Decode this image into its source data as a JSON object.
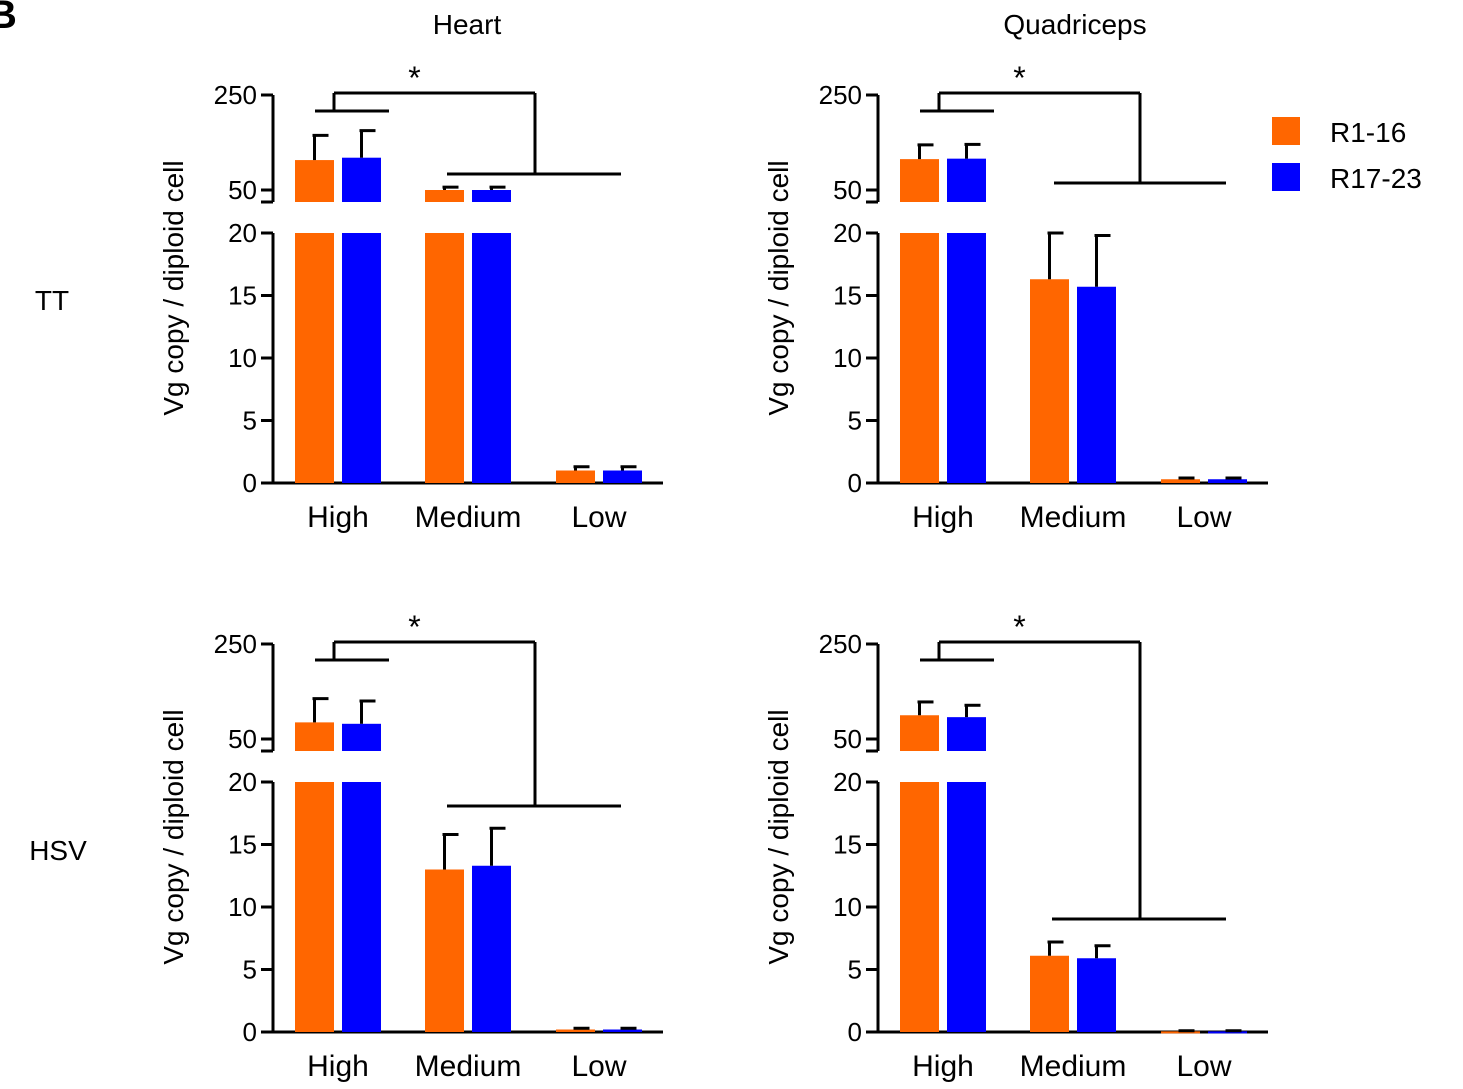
{
  "panel_letter": "B",
  "column_titles": [
    "Heart",
    "Quadriceps"
  ],
  "row_labels": [
    "TT",
    "HSV"
  ],
  "colors": {
    "R1-16": "#ff6600",
    "R17-23": "#0000ff",
    "axis": "#000000"
  },
  "legend": [
    {
      "label": "R1-16",
      "color": "#ff6600"
    },
    {
      "label": "R17-23",
      "color": "#0000ff"
    }
  ],
  "significance_marker": "*",
  "chart_data": [
    {
      "type": "bar",
      "title": "Heart",
      "row": "TT",
      "ylabel": "Vg copy / diploid cell",
      "categories": [
        "High",
        "Medium",
        "Low"
      ],
      "yaxis_break": {
        "lower": [
          0,
          20
        ],
        "upper": [
          50,
          250
        ]
      },
      "yticks_lower": [
        "0",
        "5",
        "10",
        "15",
        "20"
      ],
      "yticks_upper": [
        "50",
        "250"
      ],
      "series": [
        {
          "name": "R1-16",
          "values": [
            113,
            50,
            1.0
          ],
          "errors": [
            52,
            6,
            0.3
          ]
        },
        {
          "name": "R17-23",
          "values": [
            118,
            50,
            1.0
          ],
          "errors": [
            57,
            6,
            0.3
          ]
        }
      ],
      "significance": "*"
    },
    {
      "type": "bar",
      "title": "Quadriceps",
      "row": "TT",
      "ylabel": "Vg copy / diploid cell",
      "categories": [
        "High",
        "Medium",
        "Low"
      ],
      "yaxis_break": {
        "lower": [
          0,
          20
        ],
        "upper": [
          50,
          250
        ]
      },
      "yticks_lower": [
        "0",
        "5",
        "10",
        "15",
        "20"
      ],
      "yticks_upper": [
        "50",
        "250"
      ],
      "series": [
        {
          "name": "R1-16",
          "values": [
            115,
            16.3,
            0.3
          ],
          "errors": [
            30,
            3.7,
            0.1
          ]
        },
        {
          "name": "R17-23",
          "values": [
            116,
            15.7,
            0.3
          ],
          "errors": [
            30,
            4.1,
            0.1
          ]
        }
      ],
      "significance": "*"
    },
    {
      "type": "bar",
      "title": "Heart",
      "row": "HSV",
      "ylabel": "Vg copy / diploid cell",
      "categories": [
        "High",
        "Medium",
        "Low"
      ],
      "yaxis_break": {
        "lower": [
          0,
          20
        ],
        "upper": [
          50,
          250
        ]
      },
      "yticks_lower": [
        "0",
        "5",
        "10",
        "15",
        "20"
      ],
      "yticks_upper": [
        "50",
        "250"
      ],
      "series": [
        {
          "name": "R1-16",
          "values": [
            85,
            13.0,
            0.2
          ],
          "errors": [
            50,
            2.8,
            0.1
          ]
        },
        {
          "name": "R17-23",
          "values": [
            82,
            13.3,
            0.2
          ],
          "errors": [
            48,
            3.0,
            0.1
          ]
        }
      ],
      "significance": "*"
    },
    {
      "type": "bar",
      "title": "Quadriceps",
      "row": "HSV",
      "ylabel": "Vg copy / diploid cell",
      "categories": [
        "High",
        "Medium",
        "Low"
      ],
      "yaxis_break": {
        "lower": [
          0,
          20
        ],
        "upper": [
          50,
          250
        ]
      },
      "yticks_lower": [
        "0",
        "5",
        "10",
        "15",
        "20"
      ],
      "yticks_upper": [
        "50",
        "250"
      ],
      "series": [
        {
          "name": "R1-16",
          "values": [
            100,
            6.1,
            0.05
          ],
          "errors": [
            28,
            1.1,
            0.05
          ]
        },
        {
          "name": "R17-23",
          "values": [
            96,
            5.9,
            0.05
          ],
          "errors": [
            25,
            1.0,
            0.05
          ]
        }
      ],
      "significance": "*"
    }
  ]
}
